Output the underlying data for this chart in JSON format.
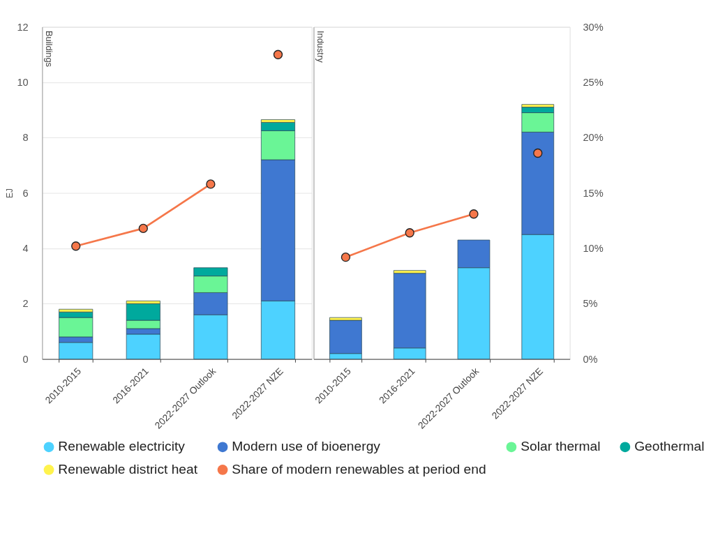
{
  "chart_data": [
    {
      "type": "bar",
      "title": "Buildings",
      "ylabel": "EJ",
      "stacked": true,
      "legend": "bottom",
      "grid": "y",
      "tick_labels": [
        "x",
        "y"
      ],
      "marker": "circle",
      "categories": [
        "2010-2015",
        "2016-2021",
        "2022-2027 Outlook",
        "2022-2027 NZE"
      ],
      "ylim": [
        0,
        12
      ],
      "yticks": [
        0,
        2,
        4,
        6,
        8,
        10,
        12
      ],
      "y2lim": [
        0,
        30
      ],
      "series": [
        {
          "name": "Renewable electricity",
          "color": "#4dd2ff",
          "values": [
            0.6,
            0.9,
            1.6,
            2.1
          ]
        },
        {
          "name": "Modern use of bioenergy",
          "color": "#3f78d1",
          "values": [
            0.2,
            0.2,
            0.8,
            5.1
          ]
        },
        {
          "name": "Solar thermal",
          "color": "#6af596",
          "values": [
            0.7,
            0.3,
            0.6,
            1.05
          ]
        },
        {
          "name": "Geothermal",
          "color": "#00a99d",
          "values": [
            0.2,
            0.6,
            0.3,
            0.3
          ]
        },
        {
          "name": "Renewable district heat",
          "color": "#fff34d",
          "values": [
            0.1,
            0.1,
            null,
            0.1
          ]
        },
        {
          "name": "Share of modern renewables at period end",
          "type": "line",
          "axis": "y2",
          "color": "#f5774a",
          "values": [
            10.2,
            11.8,
            15.8,
            null
          ]
        },
        {
          "type": "scatter",
          "axis": "y2",
          "color": "#f5774a",
          "values": [
            null,
            null,
            null,
            27.5
          ]
        }
      ]
    },
    {
      "type": "bar",
      "title": "Industry",
      "stacked": true,
      "grid": "y",
      "tick_labels": [
        "x",
        "y2"
      ],
      "marker": "circle",
      "categories": [
        "2010-2015",
        "2016-2021",
        "2022-2027 Outlook",
        "2022-2027 NZE"
      ],
      "ylim": [
        0,
        12
      ],
      "y2lim": [
        0,
        30
      ],
      "y2ticks": [
        {
          "value": 0,
          "label": "0%"
        },
        {
          "value": 5,
          "label": "5%"
        },
        {
          "value": 10,
          "label": "10%"
        },
        {
          "value": 15,
          "label": "15%"
        },
        {
          "value": 20,
          "label": "20%"
        },
        {
          "value": 25,
          "label": "25%"
        },
        {
          "value": 30,
          "label": "30%"
        }
      ],
      "series": [
        {
          "name": "Renewable electricity",
          "color": "#4dd2ff",
          "values": [
            0.2,
            0.4,
            3.3,
            4.5
          ]
        },
        {
          "name": "Modern use of bioenergy",
          "color": "#3f78d1",
          "values": [
            1.2,
            2.7,
            1.0,
            3.7
          ]
        },
        {
          "name": "Solar thermal",
          "color": "#6af596",
          "values": [
            null,
            null,
            null,
            0.7
          ]
        },
        {
          "name": "Geothermal",
          "color": "#00a99d",
          "values": [
            null,
            null,
            null,
            0.2
          ]
        },
        {
          "name": "Renewable district heat",
          "color": "#fff34d",
          "values": [
            0.1,
            0.1,
            null,
            0.1
          ]
        },
        {
          "name": "Share of modern renewables at period end",
          "type": "line",
          "axis": "y2",
          "color": "#f5774a",
          "values": [
            9.2,
            11.4,
            13.1,
            null
          ]
        },
        {
          "type": "scatter",
          "axis": "y2",
          "color": "#f5774a",
          "values": [
            null,
            null,
            null,
            18.6
          ]
        }
      ]
    }
  ]
}
